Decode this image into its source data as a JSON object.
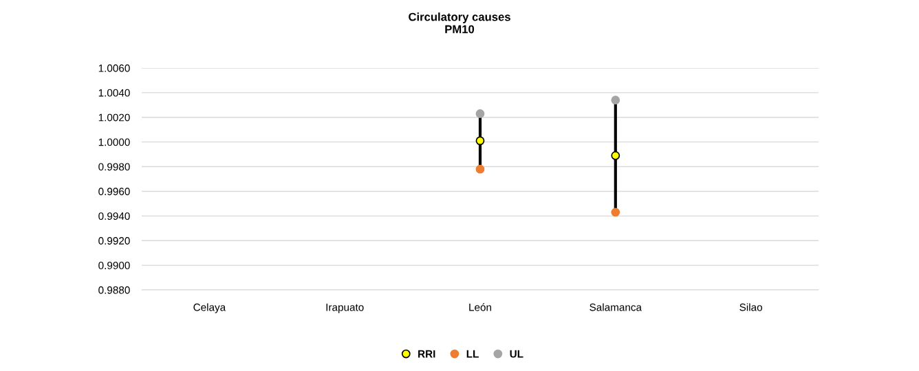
{
  "chart_data": {
    "type": "scatter",
    "title": "Circulatory causes\nPM10",
    "categories": [
      "Celaya",
      "Irapuato",
      "León",
      "Salamanca",
      "Silao"
    ],
    "series": [
      {
        "name": "RRI",
        "color": "#ffff00",
        "values": [
          null,
          null,
          1.0001,
          0.9989,
          null
        ]
      },
      {
        "name": "LL",
        "color": "#ed7d31",
        "values": [
          null,
          null,
          0.9978,
          0.9943,
          null
        ]
      },
      {
        "name": "UL",
        "color": "#a5a5a5",
        "values": [
          null,
          null,
          1.0023,
          1.0034,
          null
        ]
      }
    ],
    "ylim": [
      0.988,
      1.006
    ],
    "yticks": [
      {
        "value": 0.988,
        "label": "0.9880"
      },
      {
        "value": 0.99,
        "label": "0.9900"
      },
      {
        "value": 0.992,
        "label": "0.9920"
      },
      {
        "value": 0.994,
        "label": "0.9940"
      },
      {
        "value": 0.996,
        "label": "0.9960"
      },
      {
        "value": 0.998,
        "label": "0.9980"
      },
      {
        "value": 1.0,
        "label": "1.0000"
      },
      {
        "value": 1.002,
        "label": "1.0020"
      },
      {
        "value": 1.004,
        "label": "1.0040"
      },
      {
        "value": 1.006,
        "label": "1.0060"
      }
    ],
    "grid": "y",
    "legend": "bottom",
    "marker": "circle"
  }
}
